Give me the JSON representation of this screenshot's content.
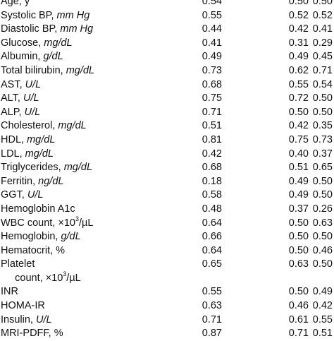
{
  "rows": [
    {
      "label": "Age, y",
      "unit": "",
      "v": [
        "0.54",
        "0.50",
        "0.50"
      ]
    },
    {
      "label": "Systolic BP, ",
      "unit": "mm Hg",
      "v": [
        "0.55",
        "0.52",
        "0.52"
      ]
    },
    {
      "label": "Diastolic BP, ",
      "unit": "mm Hg",
      "v": [
        "0.44",
        "0.42",
        "0.41"
      ]
    },
    {
      "label": "Glucose, ",
      "unit": "mg/dL",
      "v": [
        "0.41",
        "0.31",
        "0.29"
      ]
    },
    {
      "label": "Albumin, ",
      "unit": "g/dL",
      "v": [
        "0.49",
        "0.49",
        "0.45"
      ]
    },
    {
      "label": "Total bilirubin, ",
      "unit": "mg/dL",
      "v": [
        "0.73",
        "0.62",
        "0.71"
      ]
    },
    {
      "label": "AST, ",
      "unit": "U/L",
      "v": [
        "0.68",
        "0.55",
        "0.54"
      ]
    },
    {
      "label": "ALT, ",
      "unit": "U/L",
      "v": [
        "0.75",
        "0.72",
        "0.50"
      ]
    },
    {
      "label": "ALP, ",
      "unit": "U/L",
      "v": [
        "0.71",
        "0.50",
        "0.50"
      ]
    },
    {
      "label": "Cholesterol, ",
      "unit": "mg/dL",
      "v": [
        "0.51",
        "0.42",
        "0.35"
      ]
    },
    {
      "label": "HDL, ",
      "unit": "mg/dL",
      "v": [
        "0.81",
        "0.75",
        "0.73"
      ]
    },
    {
      "label": "LDL, ",
      "unit": "mg/dL",
      "v": [
        "0.42",
        "0.40",
        "0.37"
      ]
    },
    {
      "label": "Triglycerides, ",
      "unit": "mg/dL",
      "v": [
        "0.68",
        "0.51",
        "0.65"
      ]
    },
    {
      "label": "Ferritin, ",
      "unit": "ng/dL",
      "v": [
        "0.18",
        "0.49",
        "0.50"
      ]
    },
    {
      "label": "GGT, ",
      "unit": "U/L",
      "v": [
        "0.58",
        "0.49",
        "0.50"
      ]
    },
    {
      "label": "Hemoglobin A1c",
      "unit": "",
      "v": [
        "0.48",
        "0.37",
        "0.26"
      ]
    },
    {
      "label": "WBC count, ×10",
      "unit": "",
      "sup": "3",
      "tail": "/µL",
      "v": [
        "0.64",
        "0.50",
        "0.63"
      ]
    },
    {
      "label": "Hemoglobin, ",
      "unit": "g/dL",
      "v": [
        "0.66",
        "0.50",
        "0.50"
      ]
    },
    {
      "label": "Hematocrit, %",
      "unit": "",
      "v": [
        "0.64",
        "0.50",
        "0.46"
      ]
    },
    {
      "label": "Platelet",
      "unit": "",
      "v": [
        "0.65",
        "0.63",
        "0.50"
      ]
    },
    {
      "label": "     count, ×10",
      "unit": "",
      "sup": "3",
      "tail": "/µL",
      "v": [
        "",
        "",
        ""
      ]
    },
    {
      "label": "INR",
      "unit": "",
      "v": [
        "0.55",
        "0.50",
        "0.49"
      ]
    },
    {
      "label": "HOMA-IR",
      "unit": "",
      "v": [
        "0.63",
        "0.46",
        "0.42"
      ]
    },
    {
      "label": "Insulin, ",
      "unit": "U/L",
      "v": [
        "0.71",
        "0.61",
        "0.55"
      ]
    },
    {
      "label": "MRI-PDFF, %",
      "unit": "",
      "v": [
        "0.87",
        "0.71",
        "0.51"
      ]
    }
  ]
}
